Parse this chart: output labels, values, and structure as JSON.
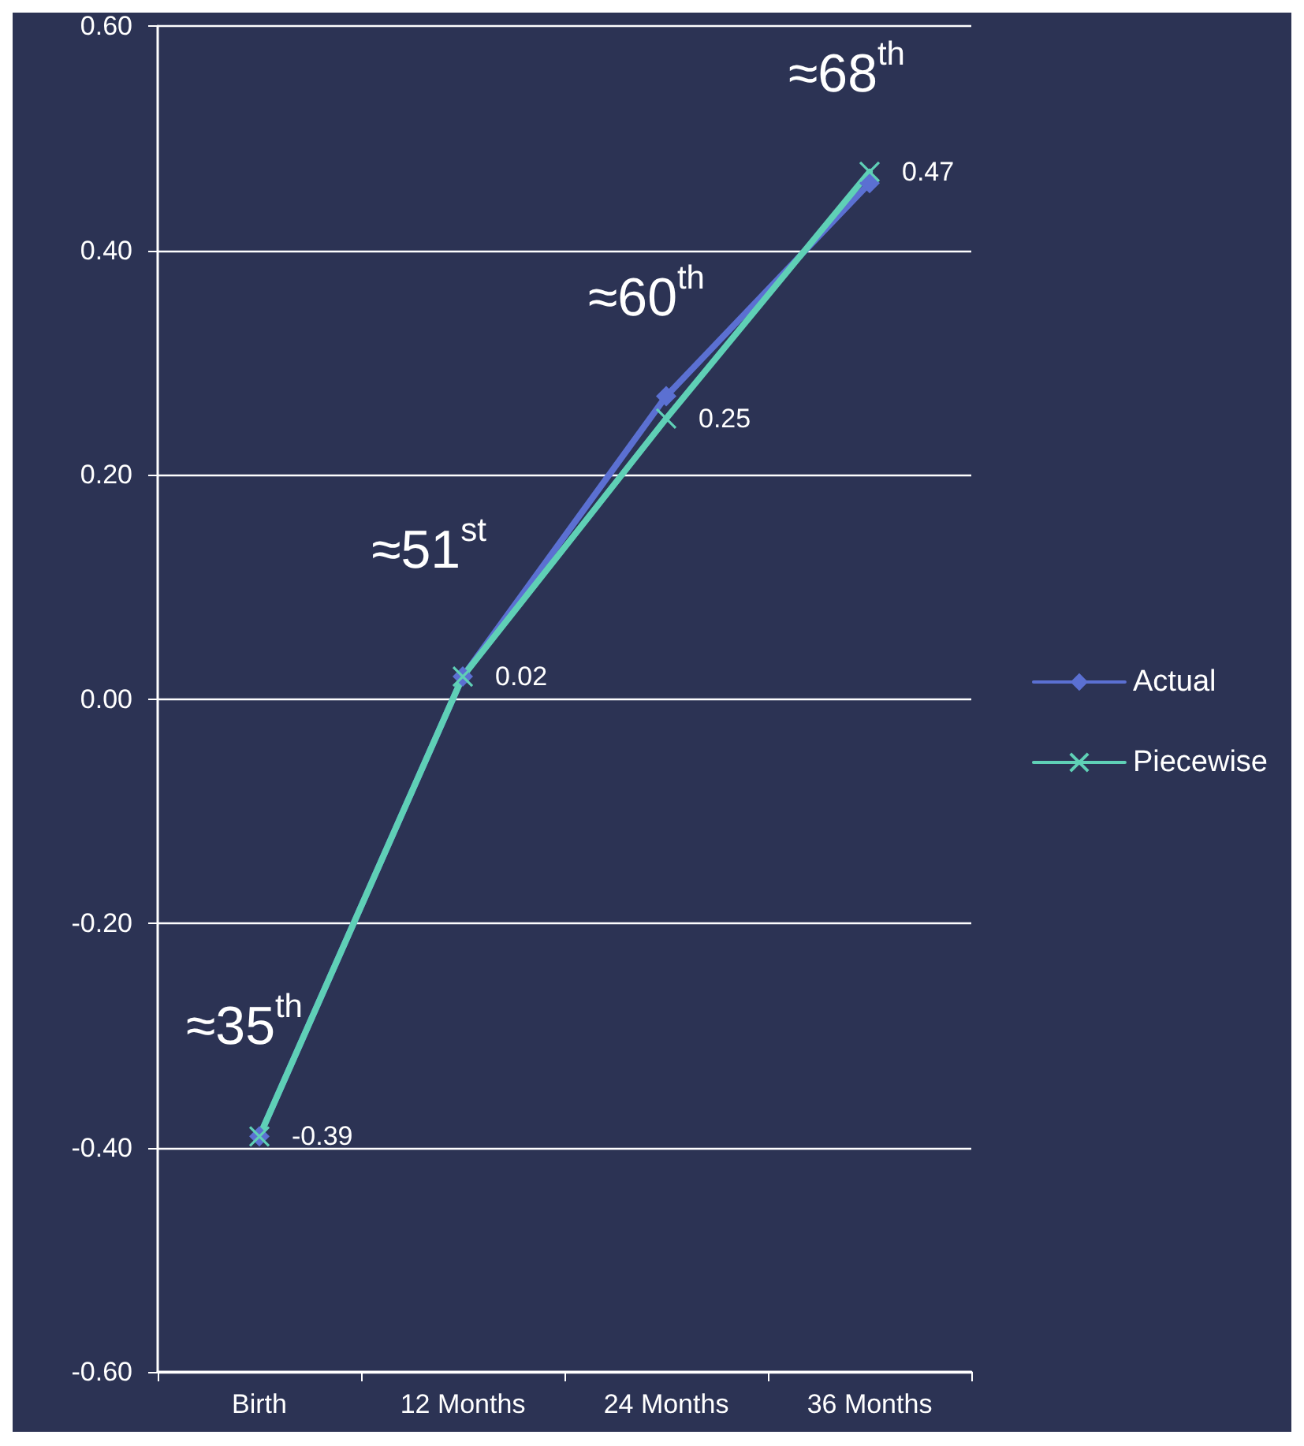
{
  "chart_data": {
    "type": "line",
    "categories": [
      "Birth",
      "12 Months",
      "24 Months",
      "36 Months"
    ],
    "series": [
      {
        "name": "Actual",
        "color": "#5b70d2",
        "marker": "diamond",
        "values": [
          -0.39,
          0.02,
          0.27,
          0.46
        ]
      },
      {
        "name": "Piecewise",
        "color": "#5fd0b6",
        "marker": "cross",
        "values": [
          -0.39,
          0.02,
          0.25,
          0.47
        ],
        "value_labels": [
          "-0.39",
          "0.02",
          "0.25",
          "0.47"
        ]
      }
    ],
    "ylim": [
      -0.6,
      0.6
    ],
    "yticks": [
      {
        "value": -0.6,
        "label": "-0.60"
      },
      {
        "value": -0.4,
        "label": "-0.40"
      },
      {
        "value": -0.2,
        "label": "-0.20"
      },
      {
        "value": 0,
        "label": "0.00"
      },
      {
        "value": 0.2,
        "label": "0.20"
      },
      {
        "value": 0.4,
        "label": "0.40"
      },
      {
        "value": 0.6,
        "label": "0.60"
      }
    ],
    "grid": "y",
    "legend": "right",
    "annotations": [
      "≈35$^{th}$",
      "≈51$^{st}$",
      "≈60$^{th}$",
      "≈68$^{th}$"
    ]
  }
}
